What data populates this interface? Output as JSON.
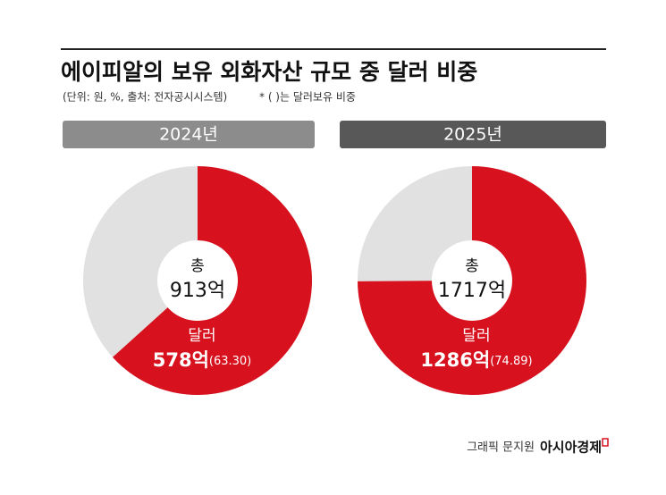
{
  "header": {
    "title": "에이피알의 보유 외화자산 규모 중 달러 비중",
    "subtitle": "(단위: 원, %, 출처: 전자공시시스템)",
    "note": "* ( )는 달러보유 비중"
  },
  "chart_data": [
    {
      "type": "pie",
      "title": "2024년",
      "title_color": "#8c8c8c",
      "center_label": "총",
      "total": 913,
      "total_label": "913억",
      "categories": [
        "달러"
      ],
      "values": [
        578
      ],
      "value_labels": [
        "578억"
      ],
      "shares": [
        63.3
      ],
      "share_labels": [
        "(63.30)"
      ],
      "colors": [
        "#d7111e"
      ],
      "rest_color": "#e1e1e1"
    },
    {
      "type": "pie",
      "title": "2025년",
      "title_color": "#585858",
      "center_label": "총",
      "total": 1717,
      "total_label": "1717억",
      "categories": [
        "달러"
      ],
      "values": [
        1286
      ],
      "value_labels": [
        "1286억"
      ],
      "shares": [
        74.89
      ],
      "share_labels": [
        "(74.89)"
      ],
      "colors": [
        "#d7111e"
      ],
      "rest_color": "#e1e1e1"
    }
  ],
  "footer": {
    "credit": "그래픽 문지원",
    "brand": "아시아경제"
  }
}
